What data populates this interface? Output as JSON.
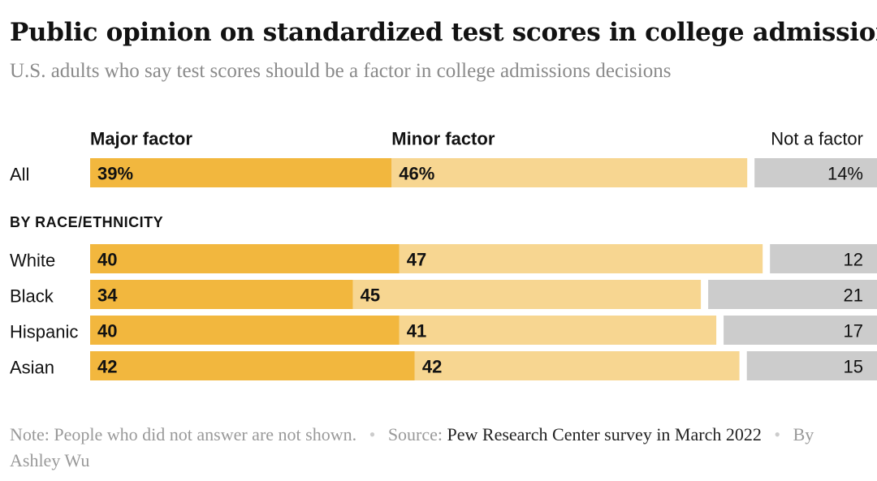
{
  "header": {
    "title": "Public opinion on standardized test scores in college admissions",
    "subtitle": "U.S. adults who say test scores should be a factor in college admissions decisions"
  },
  "footer": {
    "note_label": "Note:",
    "note_text": "People who did not answer are not shown.",
    "source_label": "Source:",
    "source_text": "Pew Research Center survey in March 2022",
    "byline": "By Ashley Wu"
  },
  "colors": {
    "major": "#f2b73e",
    "minor": "#f7d691",
    "not_factor": "#cccccc",
    "text": "#121212"
  },
  "chart_data": {
    "type": "bar",
    "orientation": "horizontal",
    "stacked": true,
    "unit": "%",
    "categories": [
      "All",
      "White",
      "Black",
      "Hispanic",
      "Asian"
    ],
    "series": [
      {
        "name": "Major factor",
        "values": [
          39,
          40,
          34,
          40,
          42
        ]
      },
      {
        "name": "Minor factor",
        "values": [
          46,
          47,
          45,
          41,
          42
        ]
      },
      {
        "name": "Not a factor",
        "values": [
          14,
          12,
          21,
          17,
          15
        ]
      }
    ],
    "data_labels": [
      [
        "39%",
        "46%",
        "14%"
      ],
      [
        "40",
        "47",
        "12"
      ],
      [
        "34",
        "45",
        "21"
      ],
      [
        "40",
        "41",
        "17"
      ],
      [
        "42",
        "42",
        "15"
      ]
    ],
    "group_heading": "BY RACE/ETHNICITY",
    "legend_position": "top",
    "grid": false
  }
}
